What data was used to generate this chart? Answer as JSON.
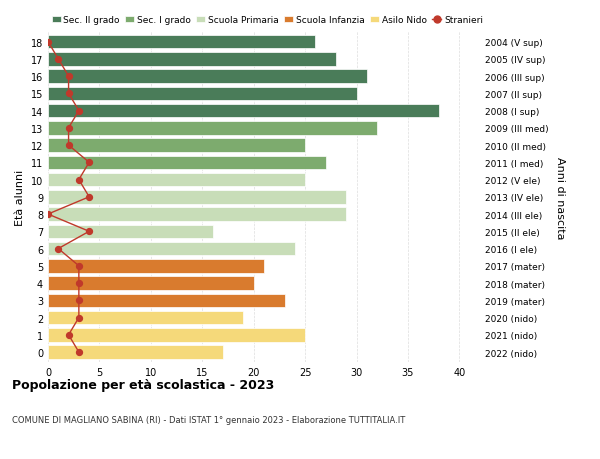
{
  "ages": [
    18,
    17,
    16,
    15,
    14,
    13,
    12,
    11,
    10,
    9,
    8,
    7,
    6,
    5,
    4,
    3,
    2,
    1,
    0
  ],
  "bar_values": [
    26,
    28,
    31,
    30,
    38,
    32,
    25,
    27,
    25,
    29,
    29,
    16,
    24,
    21,
    20,
    23,
    19,
    25,
    17
  ],
  "bar_colors": [
    "#4a7c59",
    "#4a7c59",
    "#4a7c59",
    "#4a7c59",
    "#4a7c59",
    "#7dab6e",
    "#7dab6e",
    "#7dab6e",
    "#c8ddb8",
    "#c8ddb8",
    "#c8ddb8",
    "#c8ddb8",
    "#c8ddb8",
    "#d97b2e",
    "#d97b2e",
    "#d97b2e",
    "#f5d97a",
    "#f5d97a",
    "#f5d97a"
  ],
  "stranieri_values": [
    0,
    1,
    2,
    2,
    3,
    2,
    2,
    4,
    3,
    4,
    0,
    4,
    1,
    3,
    3,
    3,
    3,
    2,
    3
  ],
  "right_labels": [
    "2004 (V sup)",
    "2005 (IV sup)",
    "2006 (III sup)",
    "2007 (II sup)",
    "2008 (I sup)",
    "2009 (III med)",
    "2010 (II med)",
    "2011 (I med)",
    "2012 (V ele)",
    "2013 (IV ele)",
    "2014 (III ele)",
    "2015 (II ele)",
    "2016 (I ele)",
    "2017 (mater)",
    "2018 (mater)",
    "2019 (mater)",
    "2020 (nido)",
    "2021 (nido)",
    "2022 (nido)"
  ],
  "legend_labels": [
    "Sec. II grado",
    "Sec. I grado",
    "Scuola Primaria",
    "Scuola Infanzia",
    "Asilo Nido",
    "Stranieri"
  ],
  "legend_colors": [
    "#4a7c59",
    "#7dab6e",
    "#c8ddb8",
    "#d97b2e",
    "#f5d97a",
    "#c0392b"
  ],
  "ylabel": "Età alunni",
  "right_ylabel": "Anni di nascita",
  "title": "Popolazione per età scolastica - 2023",
  "subtitle": "COMUNE DI MAGLIANO SABINA (RI) - Dati ISTAT 1° gennaio 2023 - Elaborazione TUTTITALIA.IT",
  "xlim": [
    0,
    42
  ],
  "xticks": [
    0,
    5,
    10,
    15,
    20,
    25,
    30,
    35,
    40
  ],
  "stranieri_color": "#c0392b",
  "bg_color": "#ffffff",
  "grid_color": "#dddddd"
}
